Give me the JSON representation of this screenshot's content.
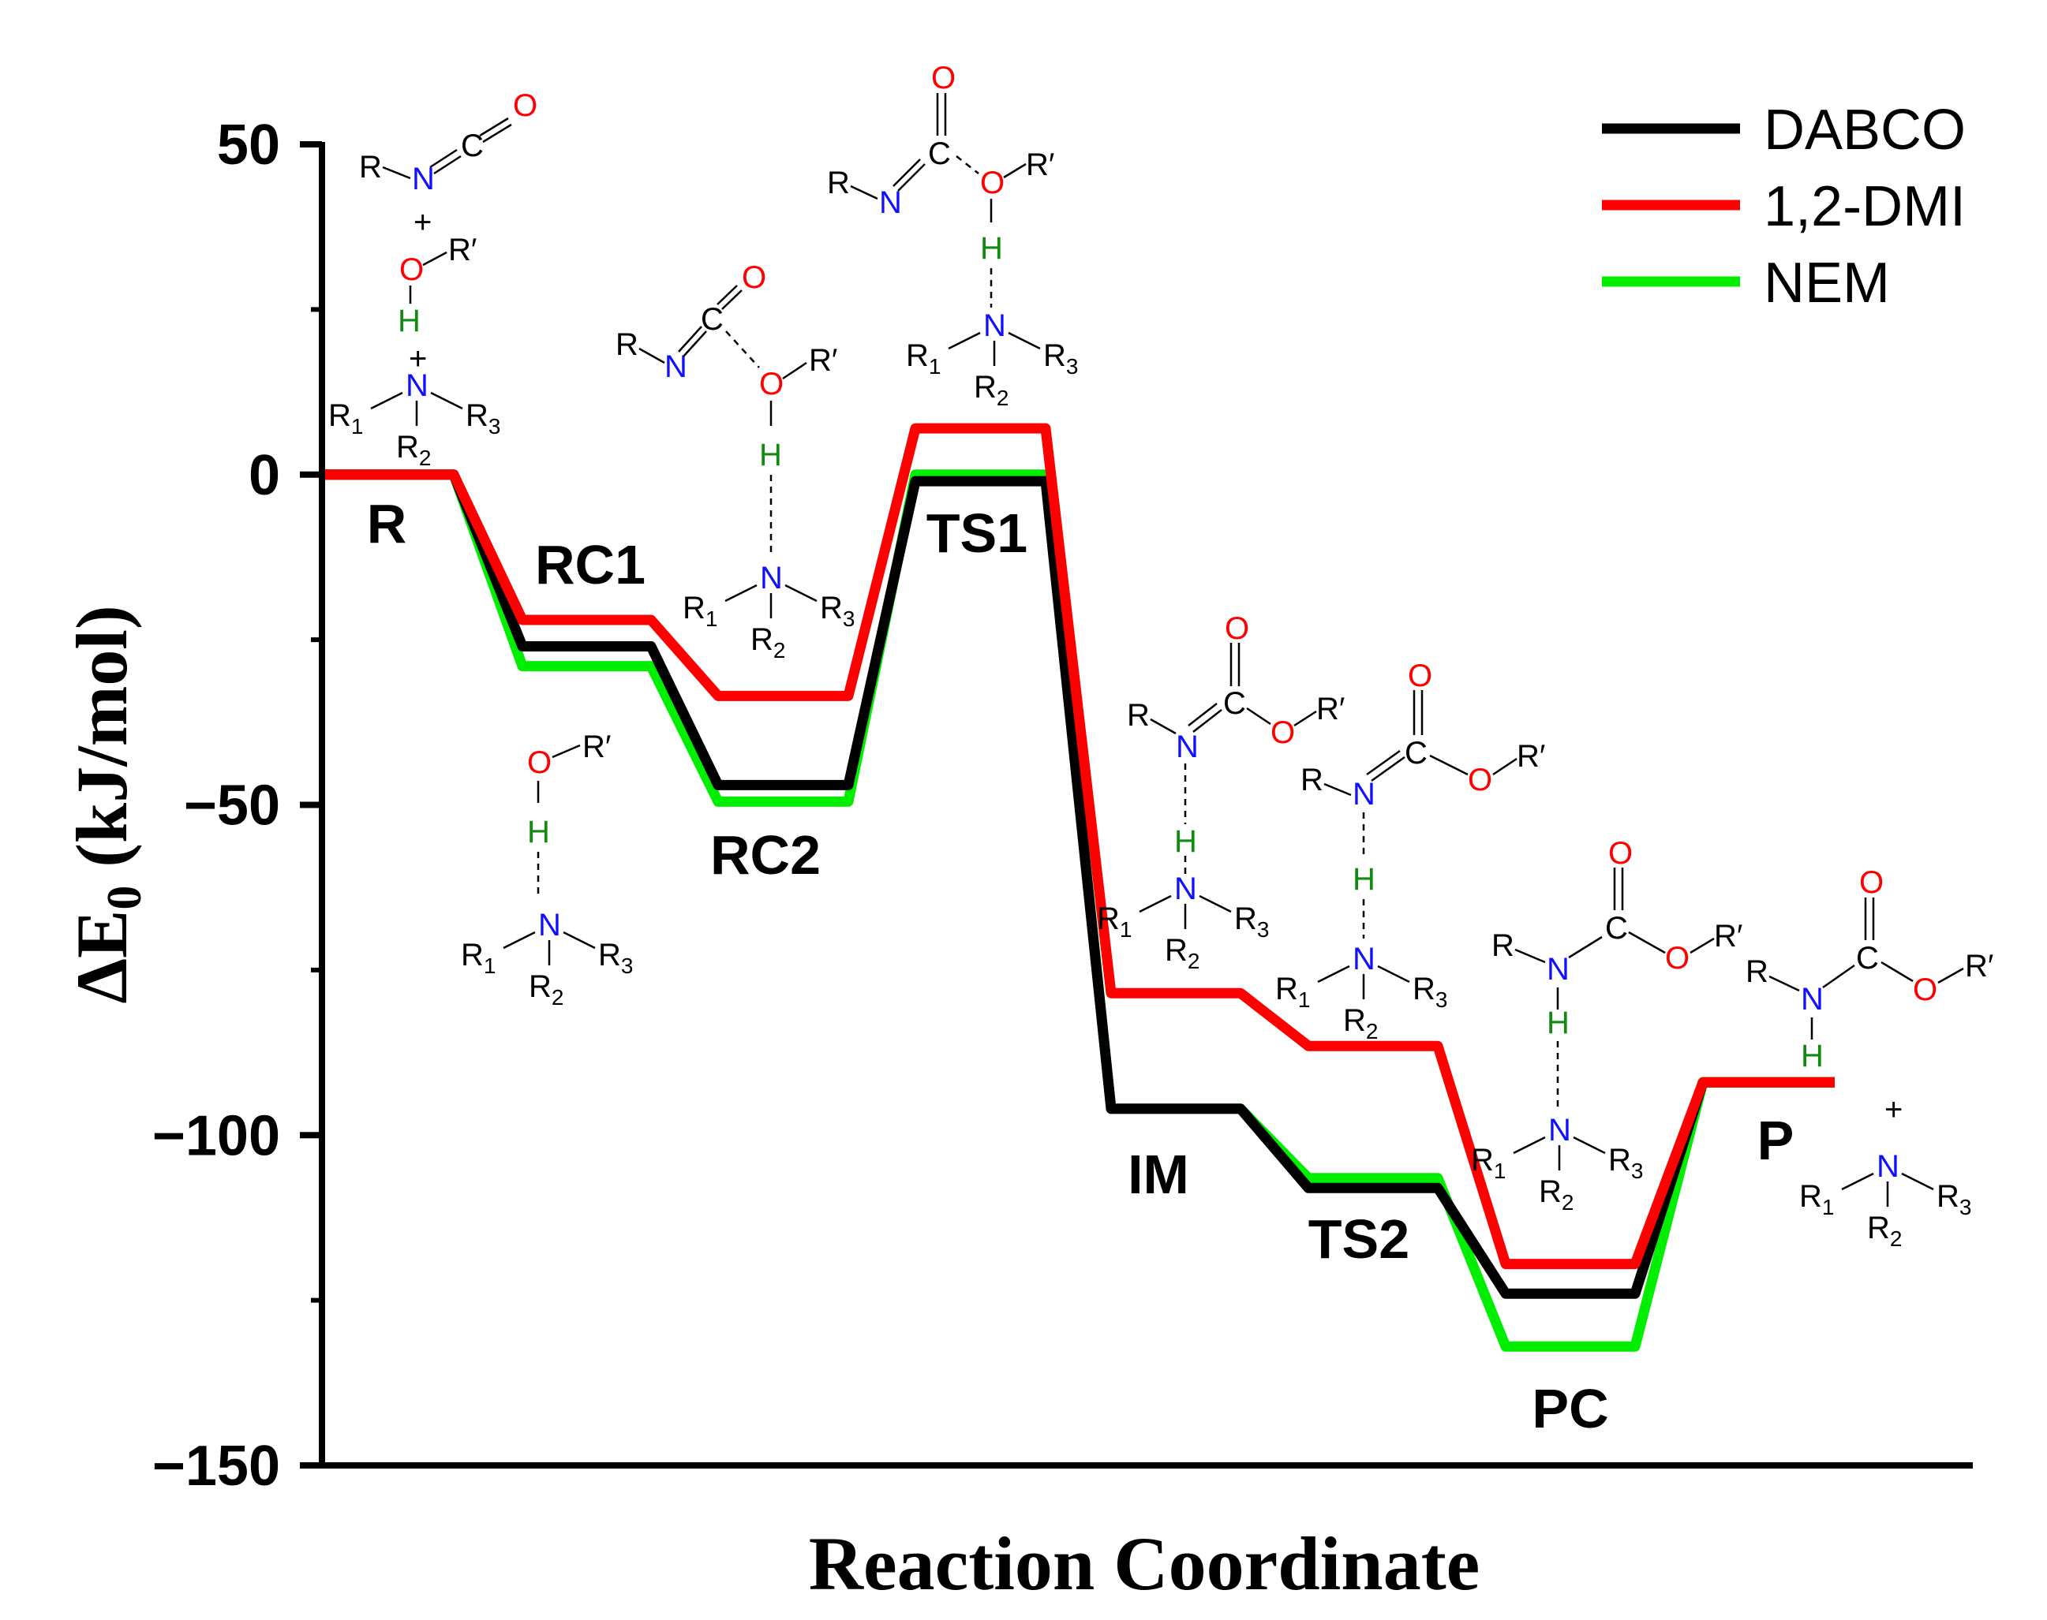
{
  "chart_data": {
    "type": "line",
    "title": "",
    "xlabel": "Reaction Coordinate",
    "ylabel_main": "ΔE",
    "ylabel_sub": "0",
    "ylabel_unit": " (kJ/mol)",
    "ylim": [
      -150,
      50
    ],
    "yticks": [
      50,
      0,
      -50,
      -100,
      -150
    ],
    "ytick_labels": [
      "50",
      "0",
      "−50",
      "−100",
      "−150"
    ],
    "grid": false,
    "legend_position": "top-right",
    "states": [
      "R",
      "RC1",
      "RC2",
      "TS1",
      "IM",
      "TS2",
      "PC",
      "P"
    ],
    "series": [
      {
        "name": "DABCO",
        "color": "#000000",
        "values": [
          0,
          -26,
          -47,
          -1,
          -96,
          -108,
          -124,
          -92
        ]
      },
      {
        "name": "1,2-DMI",
        "color": "#ff0000",
        "values": [
          0,
          -22,
          -33.5,
          7,
          -78.5,
          -86.5,
          -119.5,
          -92
        ]
      },
      {
        "name": "NEM",
        "color": "#00ee00",
        "values": [
          0,
          -29,
          -49.5,
          0,
          -96,
          -106.5,
          -132,
          -92
        ]
      }
    ]
  },
  "molecules": {
    "R": "R",
    "Rp": "R′",
    "N": "N",
    "O": "O",
    "C": "C",
    "H": "H",
    "R1": "R",
    "R2": "R",
    "R3": "R",
    "sub1": "1",
    "sub2": "2",
    "sub3": "3",
    "plus": "+"
  }
}
